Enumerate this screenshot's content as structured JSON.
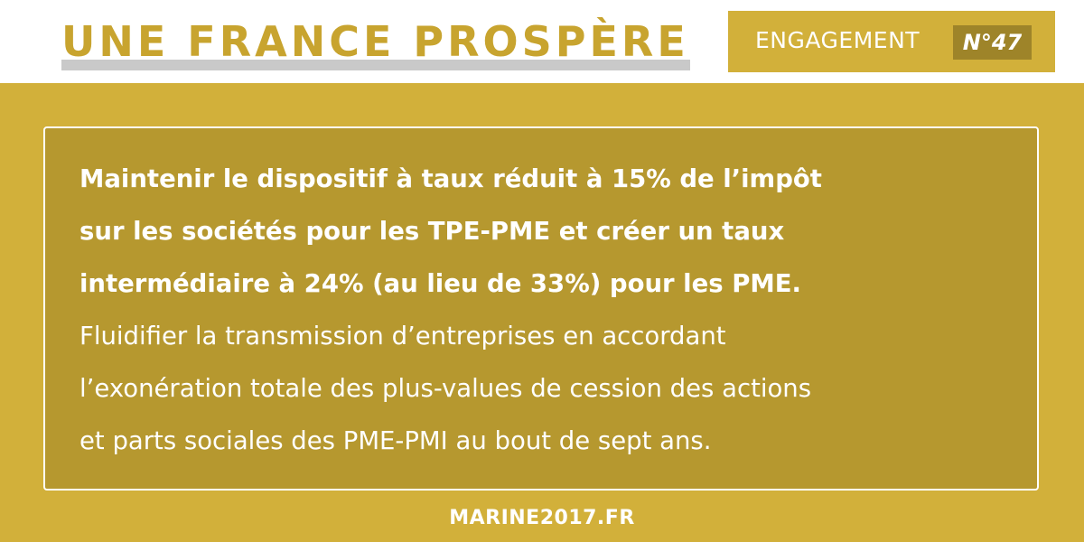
{
  "header": {
    "title": "UNE FRANCE PROSPÈRE",
    "badge_label": "ENGAGEMENT",
    "badge_number": "N°47"
  },
  "content": {
    "bold_lines": [
      "Maintenir le dispositif à taux réduit à 15% de l’impôt",
      "sur les sociétés pour les TPE-PME et créer un taux",
      "intermédiaire à 24% (au lieu de 33%) pour les PME."
    ],
    "regular_lines": [
      "Fluidifier la transmission d’entreprises en accordant",
      "l’exonération totale des plus-values de cession des actions",
      "et parts sociales des PME-PMI au bout de sept ans."
    ]
  },
  "footer": {
    "url": "MARINE2017.FR"
  },
  "colors": {
    "gold": "#d2b03a",
    "dark_gold": "#b6982f",
    "title_gold": "#c8a42f",
    "badge_number_bg": "#9e8429",
    "underline_gray": "#c9c9c9"
  }
}
